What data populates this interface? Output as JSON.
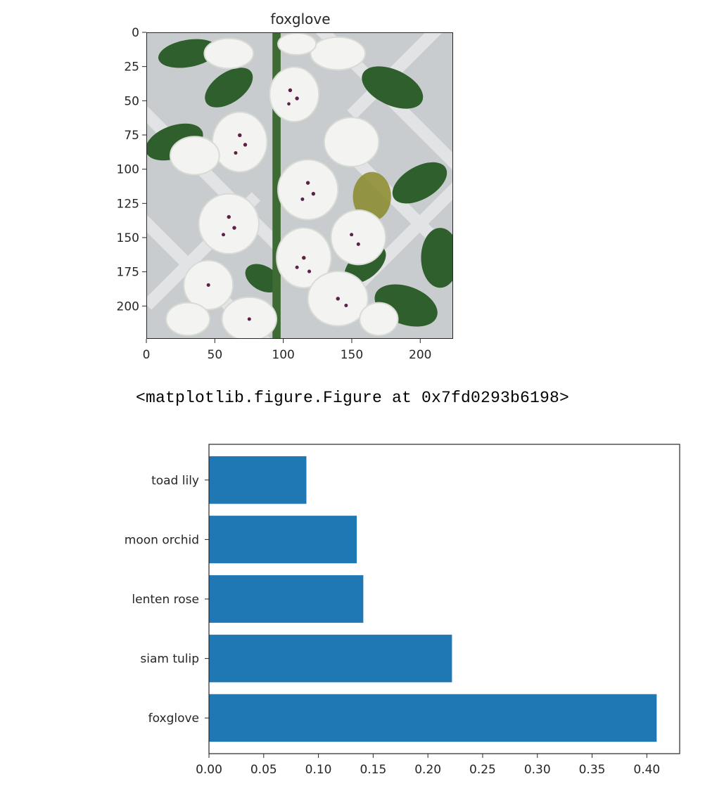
{
  "image_panel": {
    "title": "foxglove",
    "y_ticks": [
      "0",
      "25",
      "50",
      "75",
      "100",
      "125",
      "150",
      "175",
      "200"
    ],
    "x_ticks": [
      "0",
      "50",
      "100",
      "150",
      "200"
    ],
    "image_size": 224,
    "image_description_icon": "flower-photo"
  },
  "output_repr": "<matplotlib.figure.Figure at 0x7fd0293b6198>",
  "chart_data": {
    "type": "bar",
    "orientation": "horizontal",
    "categories": [
      "foxglove",
      "siam tulip",
      "lenten rose",
      "moon orchid",
      "toad lily"
    ],
    "values": [
      0.409,
      0.222,
      0.141,
      0.135,
      0.089
    ],
    "xlim": [
      0.0,
      0.43
    ],
    "x_ticks": [
      "0.00",
      "0.05",
      "0.10",
      "0.15",
      "0.20",
      "0.25",
      "0.30",
      "0.35",
      "0.40"
    ],
    "title": "",
    "xlabel": "",
    "ylabel": "",
    "grid": false,
    "bar_color": "#1f77b4"
  }
}
